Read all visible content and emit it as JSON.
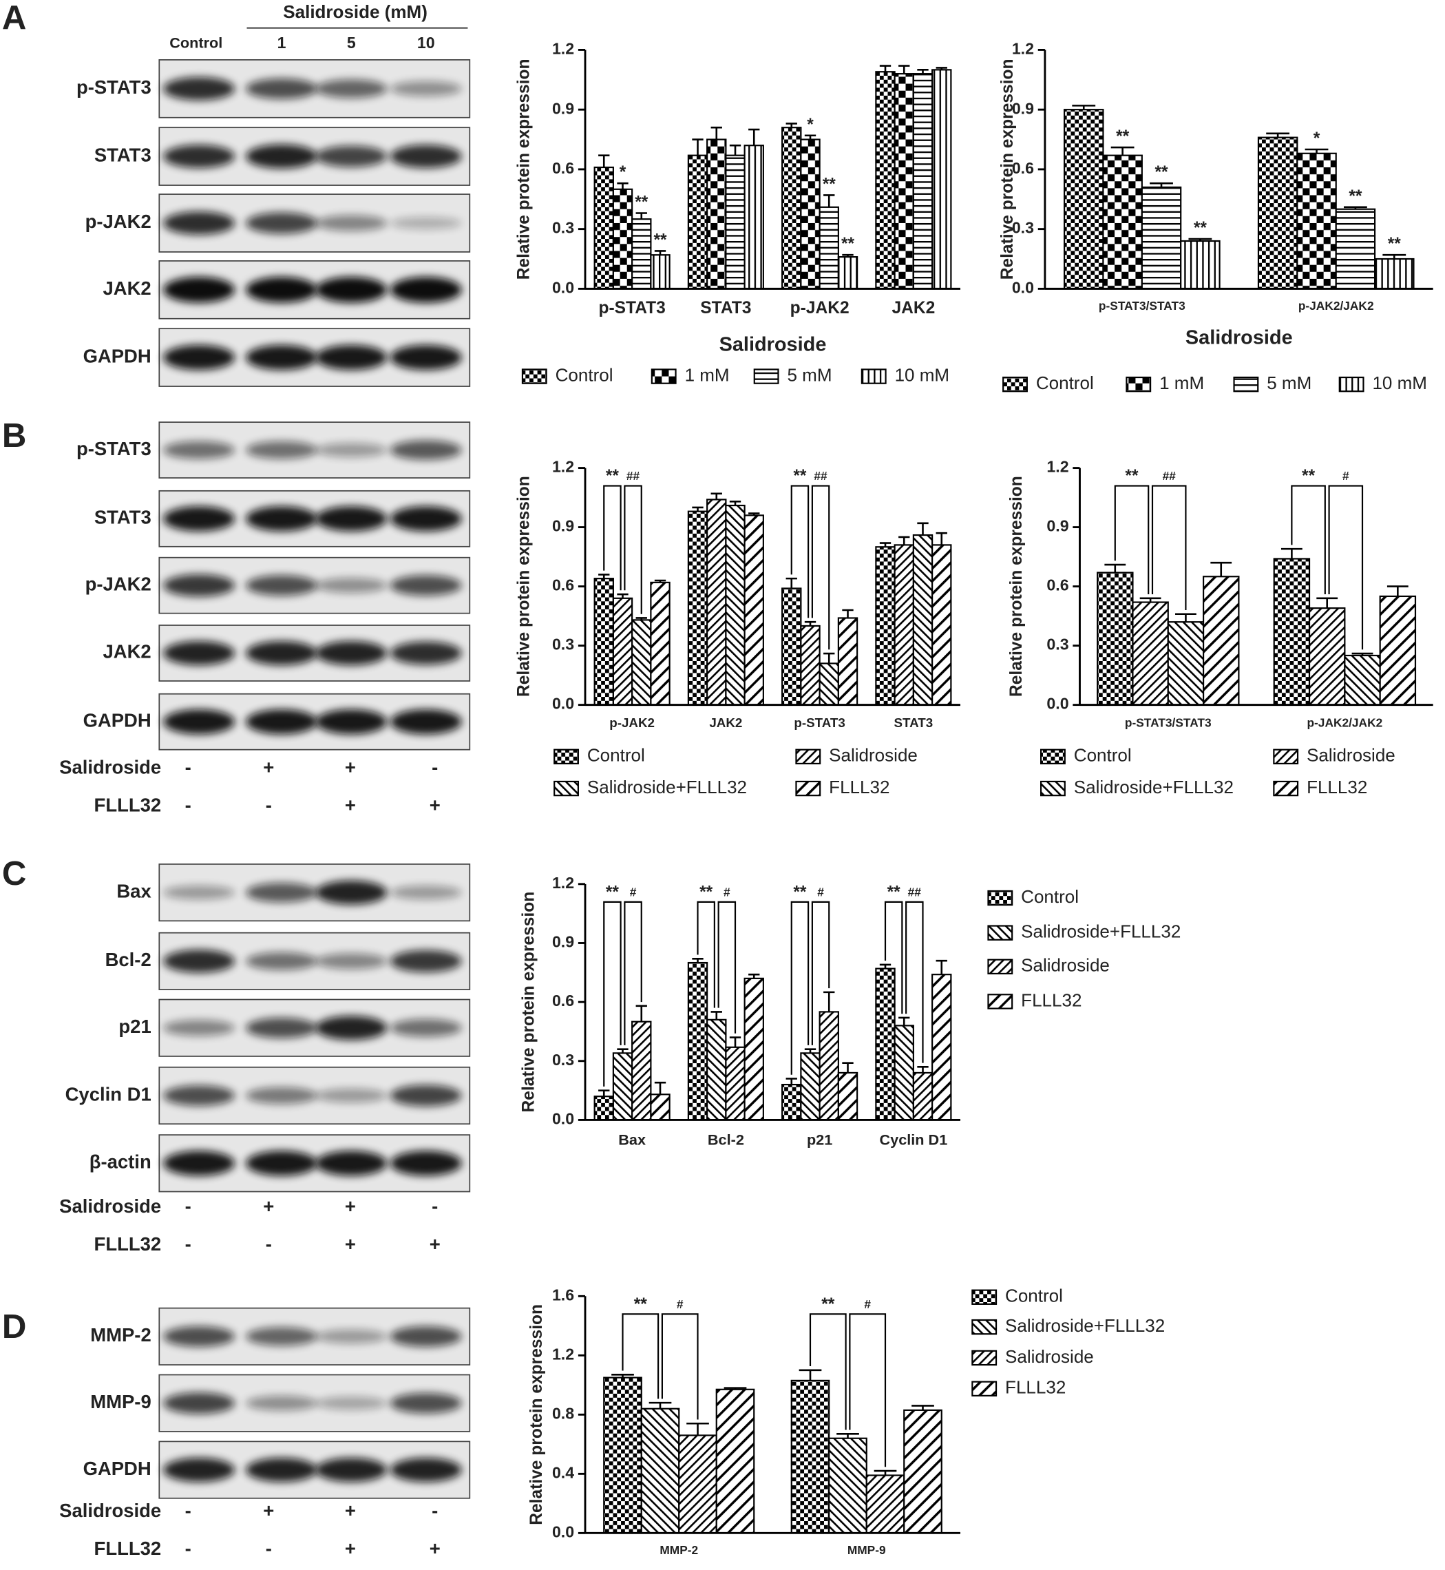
{
  "blots": [
    {
      "panel": "A",
      "header": "Salidroside (mM)",
      "lanes": [
        "Control",
        "1",
        "5",
        "10"
      ],
      "bands": [
        "p-STAT3",
        "STAT3",
        "p-JAK2",
        "JAK2",
        "GAPDH"
      ]
    },
    {
      "panel": "B",
      "bands": [
        "p-STAT3",
        "STAT3",
        "p-JAK2",
        "JAK2",
        "GAPDH"
      ],
      "treatments": [
        {
          "name": "Salidroside",
          "signs": [
            "-",
            "+",
            "+",
            "-"
          ]
        },
        {
          "name": "FLLL32",
          "signs": [
            "-",
            "-",
            "+",
            "+"
          ]
        }
      ]
    },
    {
      "panel": "C",
      "bands": [
        "Bax",
        "Bcl-2",
        "p21",
        "Cyclin D1",
        "β-actin"
      ],
      "treatments": [
        {
          "name": "Salidroside",
          "signs": [
            "-",
            "+",
            "+",
            "-"
          ]
        },
        {
          "name": "FLLL32",
          "signs": [
            "-",
            "-",
            "+",
            "+"
          ]
        }
      ]
    },
    {
      "panel": "D",
      "bands": [
        "MMP-2",
        "MMP-9",
        "GAPDH"
      ],
      "treatments": [
        {
          "name": "Salidroside",
          "signs": [
            "-",
            "+",
            "+",
            "-"
          ]
        },
        {
          "name": "FLLL32",
          "signs": [
            "-",
            "-",
            "+",
            "+"
          ]
        }
      ]
    }
  ],
  "chart_data": [
    {
      "type": "bar",
      "ylabel": "Relative protein expression",
      "xlabel": "Salidroside",
      "brackets": false,
      "categories": [
        "p-STAT3",
        "STAT3",
        "p-JAK2",
        "JAK2"
      ],
      "ylim": [
        0,
        1.2
      ],
      "yticks": [
        {
          "value": 0,
          "label": "0.0"
        },
        0.3,
        0.6,
        0.9,
        1.2
      ],
      "series": [
        {
          "name": "Control",
          "color": "#000000",
          "pattern": "checker",
          "values": [
            0.61,
            0.67,
            0.81,
            1.09
          ],
          "errors": [
            0.06,
            0.08,
            0.02,
            0.03
          ],
          "annotations": [
            null,
            null,
            null,
            null
          ]
        },
        {
          "name": "1 mM",
          "color": "#000000",
          "pattern": "checkbold",
          "values": [
            0.5,
            0.75,
            0.75,
            1.08
          ],
          "errors": [
            0.03,
            0.06,
            0.02,
            0.04
          ],
          "annotations": [
            "*",
            null,
            "*",
            null
          ]
        },
        {
          "name": "5 mM",
          "color": "#000000",
          "pattern": "hlines",
          "values": [
            0.35,
            0.67,
            0.41,
            1.08
          ],
          "errors": [
            0.03,
            0.05,
            0.06,
            0.02
          ],
          "annotations": [
            "**",
            null,
            "**",
            null
          ]
        },
        {
          "name": "10 mM",
          "color": "#000000",
          "pattern": "vlines",
          "values": [
            0.17,
            0.72,
            0.16,
            1.1
          ],
          "errors": [
            0.02,
            0.08,
            0.01,
            0.01
          ],
          "annotations": [
            "**",
            null,
            "**",
            null
          ]
        }
      ]
    },
    {
      "type": "bar",
      "ylabel": "Relative protein expression",
      "xlabel": "Salidroside",
      "brackets": false,
      "categories": [
        "p-STAT3/STAT3",
        "p-JAK2/JAK2"
      ],
      "ylim": [
        0,
        1.2
      ],
      "yticks": [
        {
          "value": 0,
          "label": "0.0"
        },
        0.3,
        0.6,
        0.9,
        1.2
      ],
      "series": [
        {
          "name": "Control",
          "color": "#000000",
          "pattern": "checker",
          "values": [
            0.9,
            0.76
          ],
          "errors": [
            0.02,
            0.02
          ],
          "annotations": [
            null,
            null
          ]
        },
        {
          "name": "1 mM",
          "color": "#000000",
          "pattern": "checkbold",
          "values": [
            0.67,
            0.68
          ],
          "errors": [
            0.04,
            0.02
          ],
          "annotations": [
            "**",
            "*"
          ]
        },
        {
          "name": "5 mM",
          "color": "#000000",
          "pattern": "hlines",
          "values": [
            0.51,
            0.4
          ],
          "errors": [
            0.02,
            0.01
          ],
          "annotations": [
            "**",
            "**"
          ]
        },
        {
          "name": "10 mM",
          "color": "#000000",
          "pattern": "vlines",
          "values": [
            0.24,
            0.15
          ],
          "errors": [
            0.01,
            0.02
          ],
          "annotations": [
            "**",
            "**"
          ]
        }
      ]
    },
    {
      "type": "bar",
      "ylabel": "Relative protein expression",
      "brackets": true,
      "categories": [
        "p-JAK2",
        "JAK2",
        "p-STAT3",
        "STAT3"
      ],
      "ylim": [
        0,
        1.2
      ],
      "yticks": [
        {
          "value": 0,
          "label": "0.0"
        },
        0.3,
        0.6,
        0.9,
        1.2
      ],
      "series": [
        {
          "name": "Control",
          "color": "#000000",
          "pattern": "checker",
          "values": [
            0.64,
            0.98,
            0.59,
            0.8
          ],
          "errors": [
            0.02,
            0.02,
            0.05,
            0.02
          ],
          "annotations": [
            null,
            null,
            null,
            null
          ]
        },
        {
          "name": "Salidroside",
          "color": "#000000",
          "pattern": "diag",
          "values": [
            0.54,
            1.04,
            0.4,
            0.81
          ],
          "errors": [
            0.02,
            0.03,
            0.02,
            0.04
          ],
          "annotations": [
            "**",
            null,
            "**",
            null
          ]
        },
        {
          "name": "Salidroside+FLLL32",
          "color": "#000000",
          "pattern": "antidiag",
          "values": [
            0.43,
            1.01,
            0.21,
            0.86
          ],
          "errors": [
            0.01,
            0.02,
            0.05,
            0.06
          ],
          "annotations": [
            "##",
            null,
            "##",
            null
          ]
        },
        {
          "name": "FLLL32",
          "color": "#000000",
          "pattern": "diagwide",
          "values": [
            0.62,
            0.96,
            0.44,
            0.81
          ],
          "errors": [
            0.01,
            0.01,
            0.04,
            0.06
          ],
          "annotations": [
            null,
            null,
            null,
            null
          ]
        }
      ]
    },
    {
      "type": "bar",
      "ylabel": "Relative protein expression",
      "brackets": true,
      "categories": [
        "p-STAT3/STAT3",
        "p-JAK2/JAK2"
      ],
      "ylim": [
        0,
        1.2
      ],
      "yticks": [
        {
          "value": 0,
          "label": "0.0"
        },
        0.3,
        0.6,
        0.9,
        1.2
      ],
      "series": [
        {
          "name": "Control",
          "color": "#000000",
          "pattern": "checker",
          "values": [
            0.67,
            0.74
          ],
          "errors": [
            0.04,
            0.05
          ],
          "annotations": [
            null,
            null
          ]
        },
        {
          "name": "Salidroside",
          "color": "#000000",
          "pattern": "diag",
          "values": [
            0.52,
            0.49
          ],
          "errors": [
            0.02,
            0.05
          ],
          "annotations": [
            "**",
            "**"
          ]
        },
        {
          "name": "Salidroside+FLLL32",
          "color": "#000000",
          "pattern": "antidiag",
          "values": [
            0.42,
            0.25
          ],
          "errors": [
            0.04,
            0.01
          ],
          "annotations": [
            "##",
            "#"
          ]
        },
        {
          "name": "FLLL32",
          "color": "#000000",
          "pattern": "diagwide",
          "values": [
            0.65,
            0.55
          ],
          "errors": [
            0.07,
            0.05
          ],
          "annotations": [
            null,
            null
          ]
        }
      ]
    },
    {
      "type": "bar",
      "ylabel": "Relative protein expression",
      "brackets": true,
      "categories": [
        "Bax",
        "Bcl-2",
        "p21",
        "Cyclin D1"
      ],
      "ylim": [
        0,
        1.2
      ],
      "yticks": [
        {
          "value": 0,
          "label": "0.0"
        },
        0.3,
        0.6,
        0.9,
        1.2
      ],
      "series": [
        {
          "name": "Control",
          "color": "#000000",
          "pattern": "checker",
          "values": [
            0.12,
            0.8,
            0.18,
            0.77
          ],
          "errors": [
            0.03,
            0.02,
            0.03,
            0.02
          ],
          "annotations": [
            null,
            null,
            null,
            null
          ]
        },
        {
          "name": "Salidroside+FLLL32",
          "color": "#000000",
          "pattern": "antidiag",
          "values": [
            0.34,
            0.51,
            0.34,
            0.48
          ],
          "errors": [
            0.02,
            0.04,
            0.02,
            0.04
          ],
          "annotations": [
            "**",
            "**",
            "**",
            "**"
          ]
        },
        {
          "name": "Salidroside",
          "color": "#000000",
          "pattern": "diag",
          "values": [
            0.5,
            0.37,
            0.55,
            0.24
          ],
          "errors": [
            0.08,
            0.05,
            0.1,
            0.03
          ],
          "annotations": [
            "#",
            "#",
            "#",
            "##"
          ]
        },
        {
          "name": "FLLL32",
          "color": "#000000",
          "pattern": "diagwide",
          "values": [
            0.13,
            0.72,
            0.24,
            0.74
          ],
          "errors": [
            0.06,
            0.02,
            0.05,
            0.07
          ],
          "annotations": [
            null,
            null,
            null,
            null
          ]
        }
      ]
    },
    {
      "type": "bar",
      "ylabel": "Relative protein expression",
      "brackets": true,
      "categories": [
        "MMP-2",
        "MMP-9"
      ],
      "ylim": [
        0,
        1.6
      ],
      "yticks": [
        {
          "value": 0,
          "label": "0.0"
        },
        0.4,
        0.8,
        1.2,
        1.6
      ],
      "series": [
        {
          "name": "Control",
          "color": "#000000",
          "pattern": "checker",
          "values": [
            1.05,
            1.03
          ],
          "errors": [
            0.02,
            0.07
          ],
          "annotations": [
            null,
            null
          ]
        },
        {
          "name": "Salidroside+FLLL32",
          "color": "#000000",
          "pattern": "antidiag",
          "values": [
            0.84,
            0.64
          ],
          "errors": [
            0.04,
            0.03
          ],
          "annotations": [
            "**",
            "**"
          ]
        },
        {
          "name": "Salidroside",
          "color": "#000000",
          "pattern": "diag",
          "values": [
            0.66,
            0.39
          ],
          "errors": [
            0.08,
            0.03
          ],
          "annotations": [
            "#",
            "#"
          ]
        },
        {
          "name": "FLLL32",
          "color": "#000000",
          "pattern": "diagwide",
          "values": [
            0.97,
            0.83
          ],
          "errors": [
            0.01,
            0.03
          ],
          "annotations": [
            null,
            null
          ]
        }
      ]
    }
  ]
}
